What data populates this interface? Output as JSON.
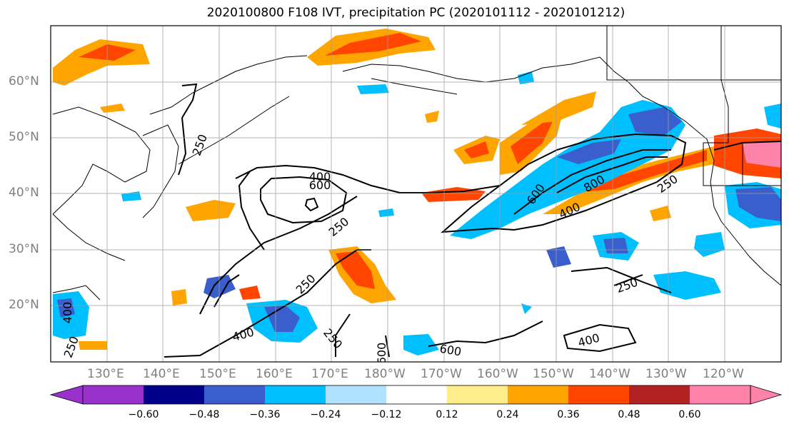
{
  "title": "2020100800 F108 IVT, precipitation PC (2020101112 - 2020101212)",
  "lat_labels": [
    "60°N",
    "50°N",
    "40°N",
    "30°N",
    "20°N"
  ],
  "lon_labels": [
    "130°E",
    "140°E",
    "150°E",
    "160°E",
    "170°E",
    "180°W",
    "170°W",
    "160°W",
    "150°W",
    "140°W",
    "130°W",
    "120°W"
  ],
  "contour_labels": {
    "c400a": "400",
    "c600a": "600",
    "c250a": "250",
    "c250b": "250",
    "c250c": "250",
    "c600b": "600",
    "c800": "800",
    "c400b": "400",
    "c250d": "250",
    "c250e": "250",
    "c400c": "400",
    "c250f": "250",
    "c600c": "600",
    "c400d": "400",
    "c250g": "250"
  },
  "colorbar": {
    "ticks": [
      "−0.60",
      "−0.48",
      "−0.36",
      "−0.24",
      "−0.12",
      "0.12",
      "0.24",
      "0.36",
      "0.48",
      "0.60"
    ],
    "colors": [
      "#9932cc",
      "#00008b",
      "#3a5fcd",
      "#00bfff",
      "#b0e2ff",
      "#ffffff",
      "#ffec8b",
      "#ffa500",
      "#ff4500",
      "#b22222",
      "#ff82ab"
    ]
  }
}
